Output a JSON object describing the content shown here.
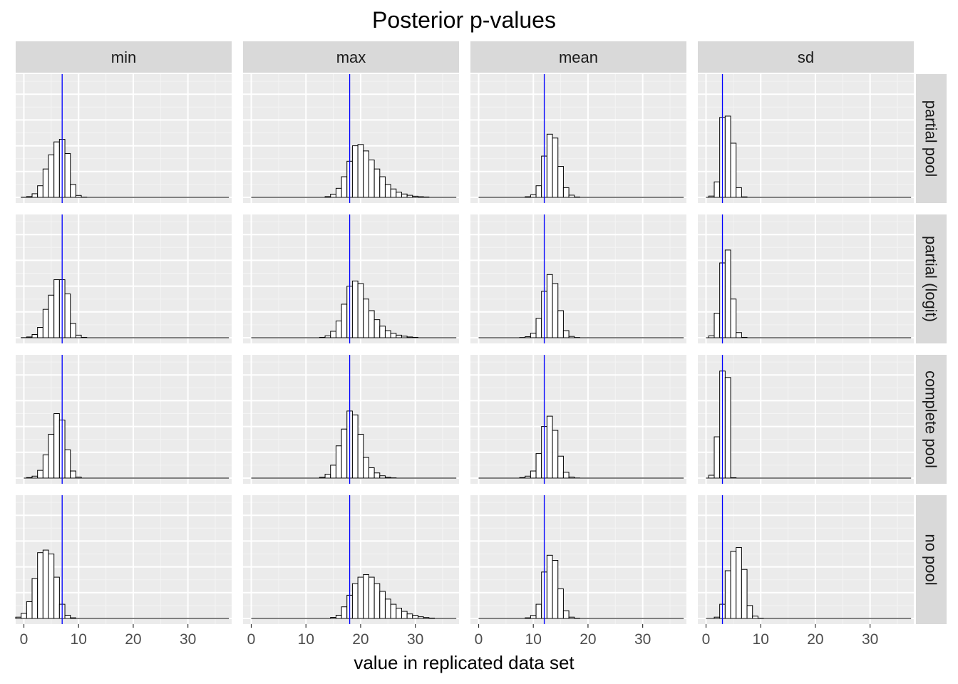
{
  "chart_data": {
    "type": "bar",
    "title": "Posterior p-values",
    "xlabel": "value in replicated data set",
    "ylabel": "",
    "xlim": [
      -1.5,
      38
    ],
    "x_ticks": [
      0,
      10,
      20,
      30
    ],
    "bin_width": 1,
    "grid": true,
    "columns": [
      "min",
      "max",
      "mean",
      "sd"
    ],
    "rows": [
      "partial pool",
      "partial (logit)",
      "complete pool",
      "no pool"
    ],
    "reference_color": "#0000FF",
    "panels": [
      [
        {
          "observed": 7,
          "bin_start": 0,
          "values": [
            0.1,
            0.6,
            2.8,
            9,
            22,
            33,
            43,
            45,
            34,
            10,
            1.5,
            0.2
          ]
        },
        {
          "observed": 18,
          "bin_start": 14,
          "values": [
            0.6,
            2.5,
            7,
            16,
            28,
            40,
            41,
            36,
            29,
            22,
            16,
            10,
            6.5,
            4,
            2.6,
            1.6,
            0.9,
            0.5,
            0.3
          ]
        },
        {
          "observed": 12,
          "bin_start": 9,
          "values": [
            0.5,
            2,
            9,
            32,
            49,
            46,
            24,
            7.5,
            1.7,
            0.3
          ]
        },
        {
          "observed": 3,
          "bin_start": 1,
          "values": [
            1,
            12,
            62,
            63,
            42,
            7.5,
            0.4
          ]
        }
      ],
      [
        {
          "observed": 7,
          "bin_start": 0,
          "values": [
            0.1,
            0.6,
            2.5,
            8,
            22,
            33,
            45,
            45,
            34,
            11,
            2,
            0.3
          ]
        },
        {
          "observed": 18,
          "bin_start": 13,
          "values": [
            0.3,
            1.5,
            5,
            13,
            26,
            40,
            44,
            42,
            30,
            21,
            14,
            9,
            5.5,
            3.4,
            2,
            1.2,
            0.6,
            0.3
          ]
        },
        {
          "observed": 12,
          "bin_start": 8,
          "values": [
            0.2,
            0.8,
            3.5,
            15,
            36,
            49,
            42,
            21,
            5.5,
            1,
            0.2
          ]
        },
        {
          "observed": 3,
          "bin_start": 1,
          "values": [
            1.5,
            19,
            58,
            68,
            30,
            4,
            0.3
          ]
        }
      ],
      [
        {
          "observed": 7,
          "bin_start": 1,
          "values": [
            0.4,
            1.5,
            6,
            18,
            34,
            50,
            45,
            22,
            5.5,
            0.8
          ]
        },
        {
          "observed": 18,
          "bin_start": 13,
          "values": [
            0.6,
            3,
            10,
            25,
            38,
            52,
            49,
            34,
            16,
            8,
            4,
            1.8,
            0.6,
            0.2
          ]
        },
        {
          "observed": 12,
          "bin_start": 8,
          "values": [
            0.4,
            1.5,
            5.5,
            19,
            40,
            48,
            37,
            17,
            4.5,
            0.8,
            0.1
          ]
        },
        {
          "observed": 3,
          "bin_start": 1,
          "values": [
            2.2,
            32,
            83,
            78,
            0.3
          ]
        }
      ],
      [
        {
          "observed": 7,
          "bin_start": -1,
          "values": [
            1,
            4,
            13,
            31,
            51,
            53,
            50,
            32,
            11,
            2.5,
            0.5
          ]
        },
        {
          "observed": 18,
          "bin_start": 15,
          "values": [
            0.8,
            2.5,
            9,
            18,
            27,
            32,
            34,
            32,
            27,
            21,
            15,
            11,
            8,
            5.5,
            3.5,
            2.4,
            1.3,
            0.7,
            0.3
          ]
        },
        {
          "observed": 12,
          "bin_start": 9,
          "values": [
            0.5,
            2.3,
            11,
            36,
            49,
            45,
            23,
            6,
            1,
            0.2
          ]
        },
        {
          "observed": 3,
          "bin_start": 2,
          "values": [
            1,
            11,
            37,
            52,
            55,
            38,
            10,
            1.8,
            0.2
          ]
        }
      ]
    ]
  }
}
